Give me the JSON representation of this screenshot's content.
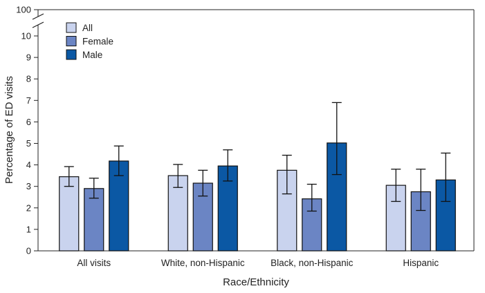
{
  "chart_data": {
    "type": "bar",
    "categories": [
      "All visits",
      "White, non-Hispanic",
      "Black, non-Hispanic",
      "Hispanic"
    ],
    "series": [
      {
        "name": "All",
        "color": "#c9d3ee",
        "values": [
          3.45,
          3.5,
          3.75,
          3.05
        ],
        "ci_low": [
          3.0,
          2.95,
          2.65,
          2.3
        ],
        "ci_high": [
          3.92,
          4.02,
          4.45,
          3.8
        ]
      },
      {
        "name": "Female",
        "color": "#6b85c4",
        "values": [
          2.9,
          3.15,
          2.42,
          2.75
        ],
        "ci_low": [
          2.45,
          2.55,
          1.85,
          1.88
        ],
        "ci_high": [
          3.38,
          3.75,
          3.1,
          3.8
        ]
      },
      {
        "name": "Male",
        "color": "#0b58a4",
        "values": [
          4.18,
          3.95,
          5.02,
          3.3
        ],
        "ci_low": [
          3.5,
          3.25,
          3.55,
          2.3
        ],
        "ci_high": [
          4.88,
          4.7,
          6.9,
          4.55
        ]
      }
    ],
    "ylabel": "Percentage of ED visits",
    "xlabel": "Race/Ethnicity",
    "ylim": [
      0,
      10
    ],
    "y_break": true,
    "yticks": [
      0,
      1,
      2,
      3,
      4,
      5,
      6,
      7,
      8,
      9,
      10
    ],
    "y_top_label": "100",
    "legend_position": "top-left",
    "grid": false
  }
}
